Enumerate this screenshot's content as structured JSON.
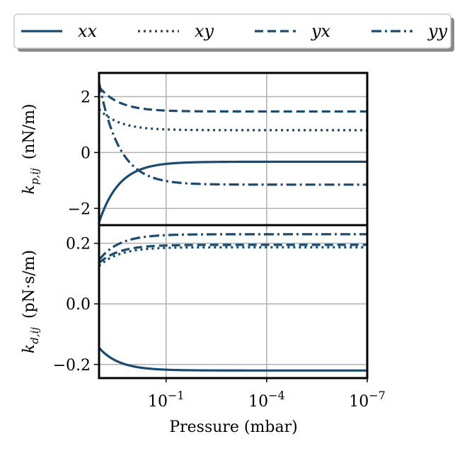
{
  "chart_data": {
    "type": "line",
    "xscale": "log",
    "x_reversed": true,
    "xlabel": "Pressure (mbar)",
    "x_range_log10": [
      1.0,
      -7.0
    ],
    "xticks": [
      {
        "log10": -1,
        "base": "10",
        "exp": "−1"
      },
      {
        "log10": -4,
        "base": "10",
        "exp": "−4"
      },
      {
        "log10": -7,
        "base": "10",
        "exp": "−7"
      }
    ],
    "legend": {
      "placement": "top",
      "entries": [
        {
          "key": "xx",
          "label": "xx",
          "style": "solid"
        },
        {
          "key": "xy",
          "label": "xy",
          "style": "dotted"
        },
        {
          "key": "yx",
          "label": "yx",
          "style": "dashed"
        },
        {
          "key": "yy",
          "label": "yy",
          "style": "dashdot"
        }
      ]
    },
    "color": "#1a4a6e",
    "panels": [
      {
        "id": "kp",
        "ylabel_main": "k",
        "ylabel_sub": "p,ij",
        "ylabel_unit": "(nN/m)",
        "ylim": [
          -2.6,
          2.85
        ],
        "yticks": [
          {
            "value": 2,
            "label": "2"
          },
          {
            "value": 0,
            "label": "0"
          },
          {
            "value": -2,
            "label": "−2"
          }
        ],
        "series": [
          {
            "name": "xx",
            "start": -2.5,
            "end": -0.33,
            "decay": 0.6
          },
          {
            "name": "xy",
            "start": 1.55,
            "end": 0.8,
            "decay": 0.6
          },
          {
            "name": "yx",
            "start": 2.35,
            "end": 1.47,
            "decay": 0.6
          },
          {
            "name": "yy",
            "start": 2.5,
            "end": -1.15,
            "decay": 0.6
          }
        ]
      },
      {
        "id": "kd",
        "ylabel_main": "k",
        "ylabel_sub": "d,ij",
        "ylabel_unit": "(pN·s/m)",
        "ylim": [
          -0.245,
          0.26
        ],
        "yticks": [
          {
            "value": 0.2,
            "label": "0.2"
          },
          {
            "value": 0.0,
            "label": "0.0"
          },
          {
            "value": -0.2,
            "label": "−0.2"
          }
        ],
        "series": [
          {
            "name": "xx",
            "start": -0.145,
            "end": -0.22,
            "decay": 0.6
          },
          {
            "name": "xy",
            "start": 0.125,
            "end": 0.187,
            "decay": 0.6
          },
          {
            "name": "yx",
            "start": 0.135,
            "end": 0.195,
            "decay": 0.6
          },
          {
            "name": "yy",
            "start": 0.145,
            "end": 0.23,
            "decay": 0.6
          }
        ]
      }
    ]
  }
}
